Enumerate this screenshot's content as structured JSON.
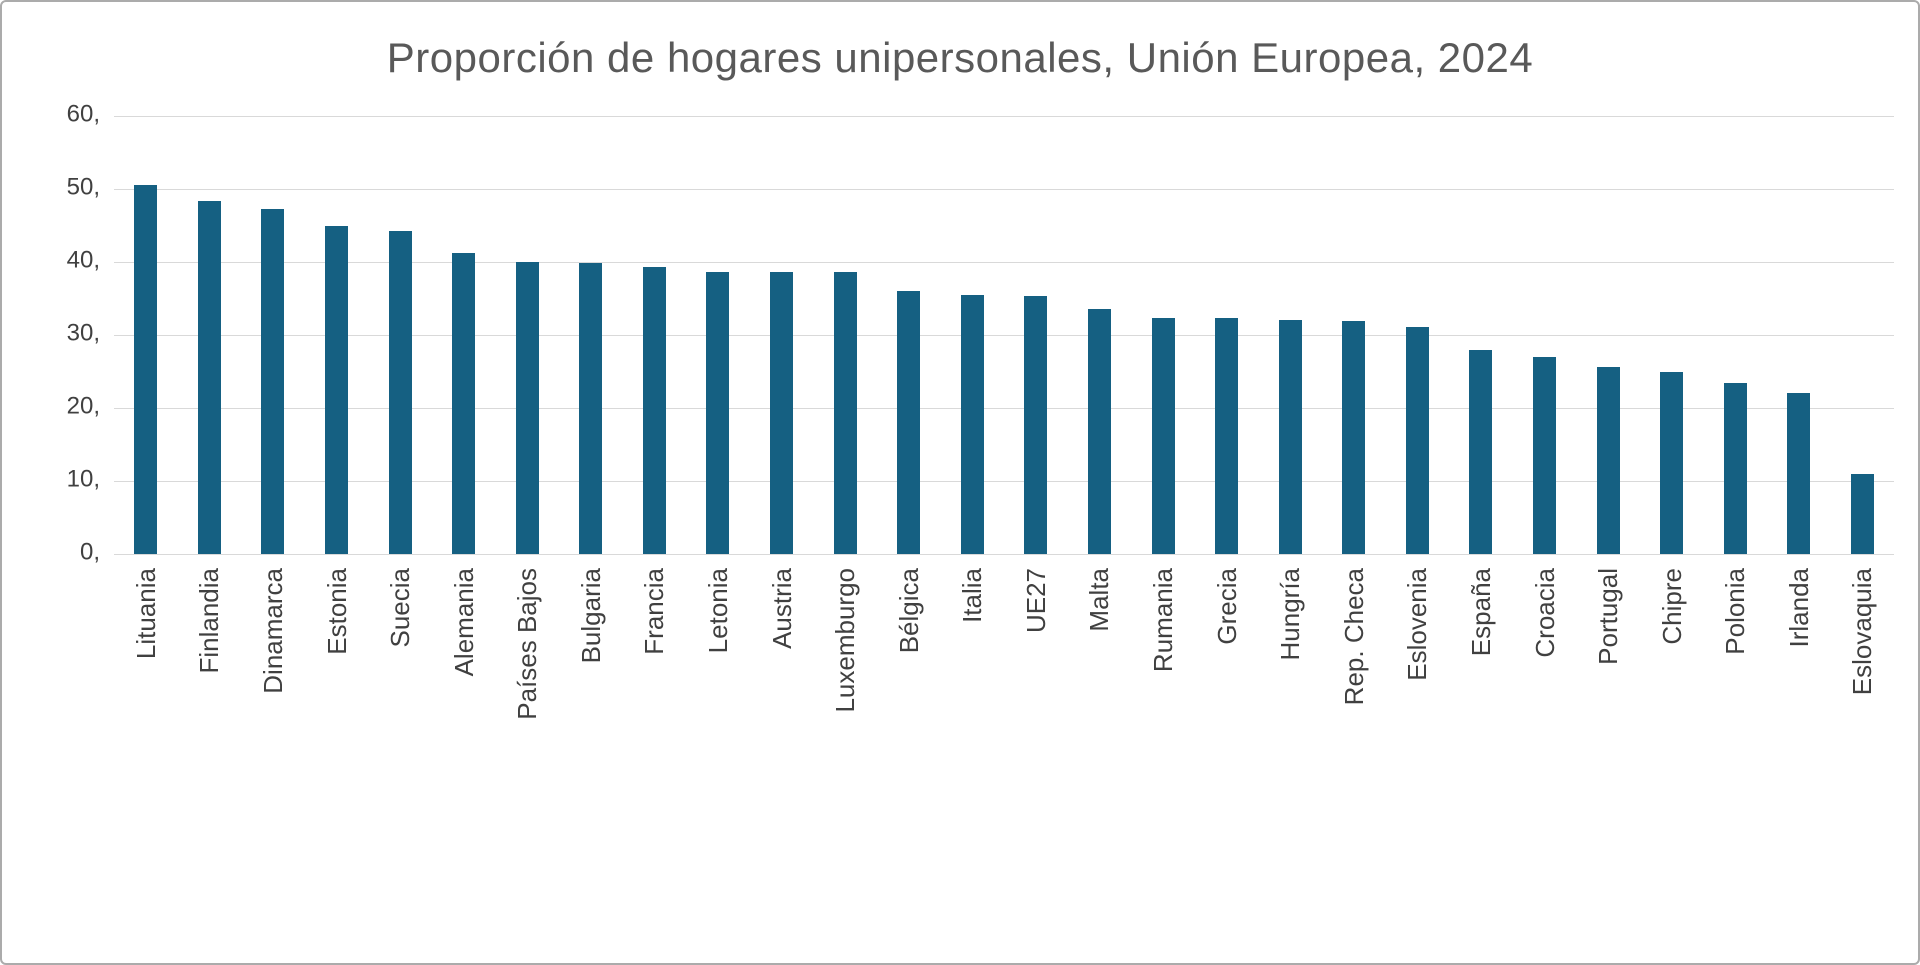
{
  "title": "Proporción de hogares unipersonales, Unión Europea, 2024",
  "colors": {
    "bar": "#156082",
    "grid": "#d9d9d9",
    "title_text": "#595959",
    "axis_text": "#404040",
    "frame_border": "#ababab"
  },
  "y_axis": {
    "max": 60,
    "min": 0,
    "tick_values": [
      60,
      50,
      40,
      30,
      20,
      10,
      0
    ],
    "tick_labels": [
      "60,",
      "50,",
      "40,",
      "30,",
      "20,",
      "10,",
      "0,"
    ]
  },
  "chart_data": {
    "type": "bar",
    "title": "Proporción de hogares unipersonales, Unión Europea, 2024",
    "xlabel": "",
    "ylabel": "",
    "ylim": [
      0,
      60
    ],
    "grid": true,
    "legend": false,
    "categories": [
      "Lituania",
      "Finlandia",
      "Dinamarca",
      "Estonia",
      "Suecia",
      "Alemania",
      "Países Bajos",
      "Bulgaria",
      "Francia",
      "Letonia",
      "Austria",
      "Luxemburgo",
      "Bélgica",
      "Italia",
      "UE27",
      "Malta",
      "Rumania",
      "Grecia",
      "Hungría",
      "Rep. Checa",
      "Eslovenia",
      "España",
      "Croacia",
      "Portugal",
      "Chipre",
      "Polonia",
      "Irlanda",
      "Eslovaquia"
    ],
    "values": [
      50.5,
      48.3,
      47.2,
      45.0,
      44.3,
      41.3,
      40.0,
      39.8,
      39.3,
      38.6,
      38.6,
      38.6,
      36.0,
      35.5,
      35.3,
      33.5,
      32.3,
      32.3,
      32.0,
      31.9,
      31.1,
      28.0,
      27.0,
      25.6,
      24.9,
      23.4,
      22.0,
      11.0
    ]
  }
}
